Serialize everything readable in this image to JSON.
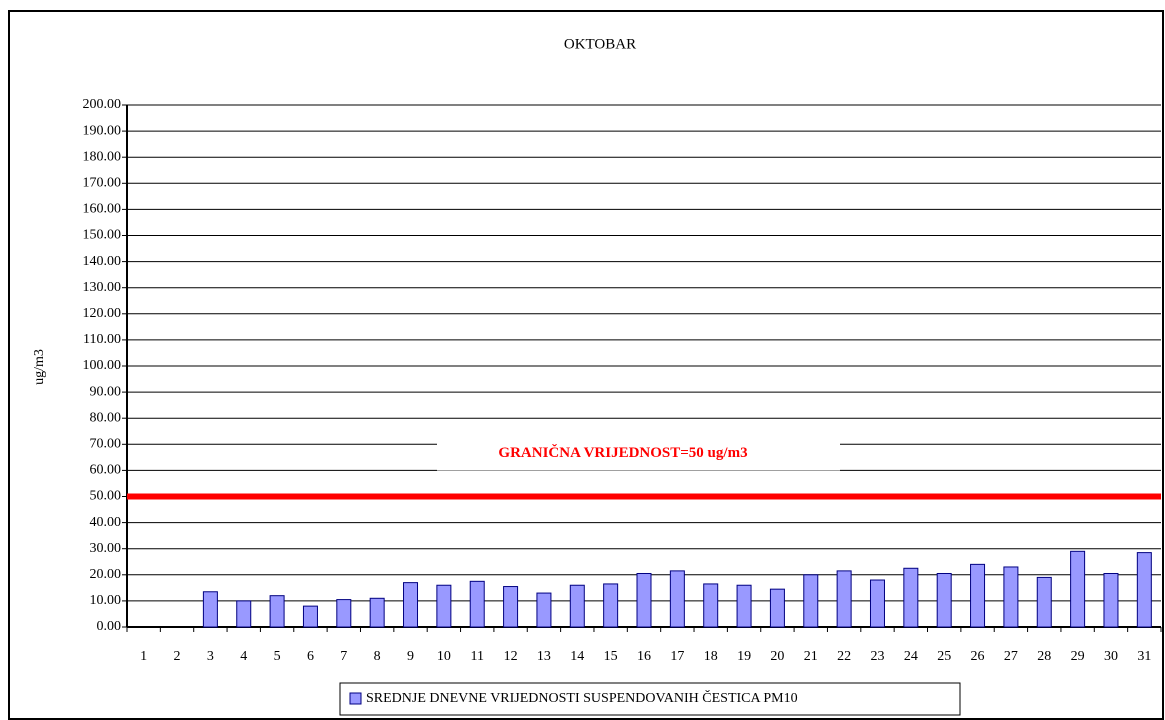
{
  "chart_data": {
    "type": "bar",
    "title": "OKTOBAR",
    "y_label": "ug/m3",
    "categories": [
      "1",
      "2",
      "3",
      "4",
      "5",
      "6",
      "7",
      "8",
      "9",
      "10",
      "11",
      "12",
      "13",
      "14",
      "15",
      "16",
      "17",
      "18",
      "19",
      "20",
      "21",
      "22",
      "23",
      "24",
      "25",
      "26",
      "27",
      "28",
      "29",
      "30",
      "31"
    ],
    "series": [
      {
        "name": "SREDNJE DNEVNE VRIJEDNOSTI SUSPENDOVANIH ČESTICA PM10",
        "color": "#9999ff",
        "values": [
          null,
          null,
          13.5,
          10,
          12,
          8,
          10.5,
          11,
          17,
          16,
          17.5,
          15.5,
          13,
          16,
          16.5,
          20.5,
          21.5,
          16.5,
          16,
          14.5,
          20,
          21.5,
          18,
          22.5,
          20.5,
          24,
          23,
          19,
          29,
          20.5,
          28.5
        ]
      }
    ],
    "limit_line": {
      "value": 50,
      "color": "#ff0000",
      "label": "GRANIČNA VRIJEDNOST=50 ug/m3"
    },
    "ylim": [
      0,
      200
    ],
    "yticks": [
      {
        "value": 0,
        "label": "0.00"
      },
      {
        "value": 10,
        "label": "10.00"
      },
      {
        "value": 20,
        "label": "20.00"
      },
      {
        "value": 30,
        "label": "30.00"
      },
      {
        "value": 40,
        "label": "40.00"
      },
      {
        "value": 50,
        "label": "50.00"
      },
      {
        "value": 60,
        "label": "60.00"
      },
      {
        "value": 70,
        "label": "70.00"
      },
      {
        "value": 80,
        "label": "80.00"
      },
      {
        "value": 90,
        "label": "90.00"
      },
      {
        "value": 100,
        "label": "100.00"
      },
      {
        "value": 110,
        "label": "110.00"
      },
      {
        "value": 120,
        "label": "120.00"
      },
      {
        "value": 130,
        "label": "130.00"
      },
      {
        "value": 140,
        "label": "140.00"
      },
      {
        "value": 150,
        "label": "150.00"
      },
      {
        "value": 160,
        "label": "160.00"
      },
      {
        "value": 170,
        "label": "170.00"
      },
      {
        "value": 180,
        "label": "180.00"
      },
      {
        "value": 190,
        "label": "190.00"
      },
      {
        "value": 200,
        "label": "200.00"
      }
    ],
    "grid": true
  }
}
